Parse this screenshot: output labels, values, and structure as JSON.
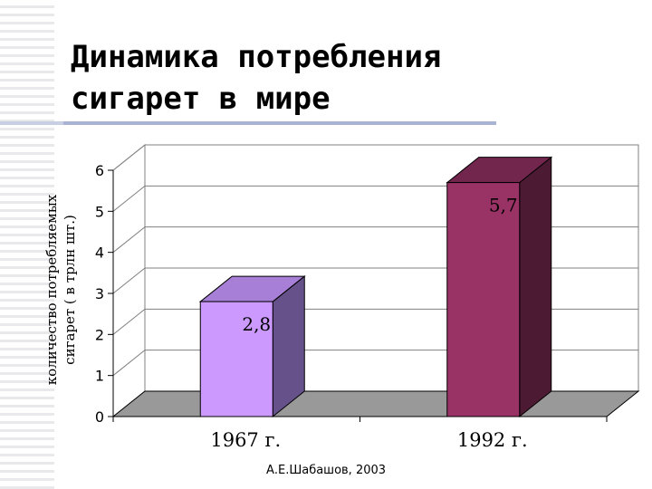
{
  "slide": {
    "title_line1": "Динамика потребления",
    "title_line2": "сигарет в мире",
    "footer": "А.Е.Шабашов, 2003"
  },
  "chart_data": {
    "type": "bar",
    "categories": [
      "1967 г.",
      "1992 г."
    ],
    "values": [
      2.8,
      5.7
    ],
    "data_labels": [
      "2,8",
      "5,7"
    ],
    "ylabel_line1": "количество потребляемых",
    "ylabel_line2": "сигарет  ( в трлн шт.)",
    "ylim": [
      0,
      6
    ],
    "yticks": [
      "0",
      "1",
      "2",
      "3",
      "4",
      "5",
      "6"
    ],
    "grid": true,
    "legend": "none",
    "three_d": true,
    "colors": {
      "bar1_front": "#cc99ff",
      "bar1_top": "#a87fd6",
      "bar1_side": "#66518a",
      "bar2_front": "#993366",
      "bar2_top": "#73264d",
      "bar2_side": "#4d1a33",
      "wall": "#ffffff",
      "floor": "#999999",
      "grid": "#808080"
    }
  }
}
